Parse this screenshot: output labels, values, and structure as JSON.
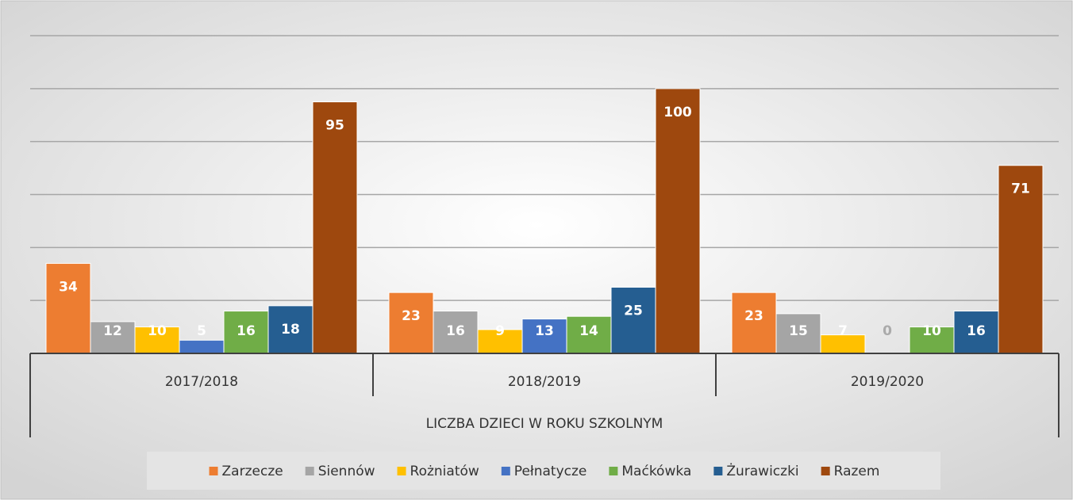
{
  "chart_data": {
    "type": "bar",
    "x_label": "LICZBA DZIECI W ROKU SZKOLNYM",
    "categories": [
      "2017/2018",
      "2018/2019",
      "2019/2020"
    ],
    "series": [
      {
        "name": "Zarzecze",
        "color": "#ed7d31",
        "values": [
          34,
          23,
          23
        ]
      },
      {
        "name": "Siennów",
        "color": "#a5a5a5",
        "values": [
          12,
          16,
          15
        ]
      },
      {
        "name": "Rożniatów",
        "color": "#ffc000",
        "values": [
          10,
          9,
          7
        ]
      },
      {
        "name": "Pełnatycze",
        "color": "#4472c4",
        "values": [
          5,
          13,
          0
        ]
      },
      {
        "name": "Maćkówka",
        "color": "#70ad47",
        "values": [
          16,
          14,
          10
        ]
      },
      {
        "name": "Żurawiczki",
        "color": "#255e91",
        "values": [
          18,
          25,
          16
        ]
      },
      {
        "name": "Razem",
        "color": "#9e480e",
        "values": [
          95,
          100,
          71
        ]
      }
    ],
    "ylim": [
      0,
      120
    ],
    "yticks": [
      0,
      20,
      40,
      60,
      80,
      100,
      120
    ],
    "grid": true,
    "legend": "bottom"
  }
}
